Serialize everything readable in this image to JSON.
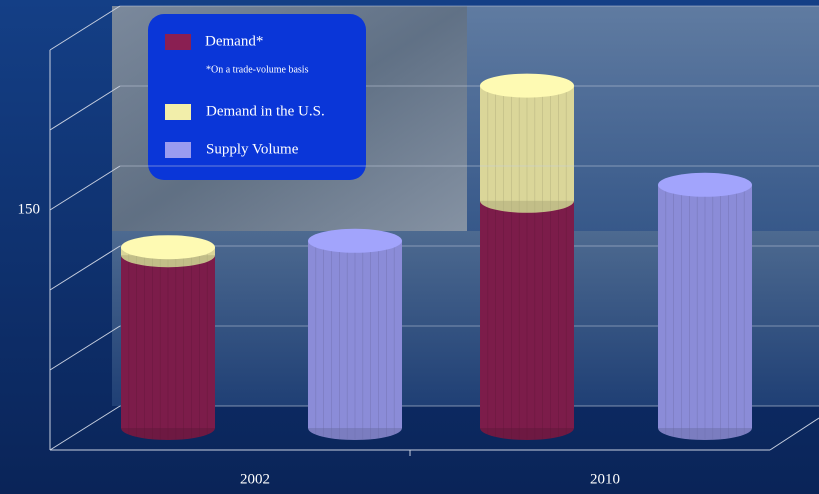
{
  "chart_data": {
    "type": "cylinder3d",
    "note": "*On a trade-volume basis",
    "categories": [
      "2002",
      "2010"
    ],
    "series": [
      {
        "name": "Demand*",
        "color": "#8a1f52",
        "values": [
          108,
          142
        ],
        "stack": "demand"
      },
      {
        "name": "Demand in the U.S.",
        "color": "#f2eeaa",
        "values": [
          5,
          72
        ],
        "stack": "demand"
      },
      {
        "name": "Supply Volume",
        "color": "#9a9cf0",
        "values": [
          117,
          152
        ],
        "stack": "supply"
      }
    ],
    "ylim": [
      0,
      250
    ],
    "yticks": [
      150
    ]
  }
}
